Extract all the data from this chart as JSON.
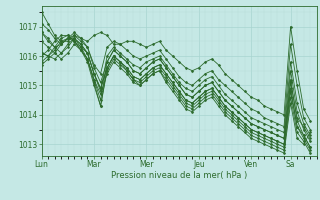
{
  "xlabel": "Pression niveau de la mer( hPa )",
  "bg_color": "#c5e8e5",
  "line_color": "#2d6b2d",
  "grid_major_color": "#a8d4d0",
  "grid_minor_color": "#b8dcd8",
  "ylim": [
    1012.6,
    1017.7
  ],
  "yticks": [
    1013,
    1014,
    1015,
    1016,
    1017
  ],
  "xlim": [
    0,
    252
  ],
  "day_positions": [
    0,
    48,
    96,
    144,
    192,
    228
  ],
  "days": [
    "Lun",
    "Mar",
    "Mer",
    "Jeu",
    "Ven",
    "Sa"
  ],
  "series": [
    [
      0,
      1017.5,
      6,
      1017.1,
      12,
      1016.7,
      18,
      1016.5,
      24,
      1016.5,
      30,
      1016.7,
      36,
      1016.6,
      42,
      1016.5,
      48,
      1016.7,
      54,
      1016.8,
      60,
      1016.7,
      66,
      1016.4,
      72,
      1016.4,
      78,
      1016.5,
      84,
      1016.5,
      90,
      1016.4,
      96,
      1016.3,
      102,
      1016.4,
      108,
      1016.5,
      114,
      1016.2,
      120,
      1016.0,
      126,
      1015.8,
      132,
      1015.6,
      138,
      1015.5,
      144,
      1015.6,
      150,
      1015.8,
      156,
      1015.9,
      162,
      1015.7,
      168,
      1015.4,
      174,
      1015.2,
      180,
      1015.0,
      186,
      1014.8,
      192,
      1014.6,
      198,
      1014.5,
      204,
      1014.3,
      210,
      1014.2,
      216,
      1014.1,
      222,
      1014.0,
      228,
      1017.0,
      234,
      1015.5,
      240,
      1014.2,
      246,
      1013.8
    ],
    [
      0,
      1016.8,
      6,
      1016.5,
      12,
      1016.3,
      18,
      1016.4,
      24,
      1016.6,
      30,
      1016.7,
      36,
      1016.5,
      42,
      1016.3,
      48,
      1015.7,
      54,
      1015.4,
      60,
      1016.3,
      66,
      1016.5,
      72,
      1016.4,
      78,
      1016.2,
      84,
      1016.0,
      90,
      1015.9,
      96,
      1016.0,
      102,
      1016.1,
      108,
      1016.2,
      114,
      1015.9,
      120,
      1015.6,
      126,
      1015.3,
      132,
      1015.1,
      138,
      1015.0,
      144,
      1015.2,
      150,
      1015.4,
      156,
      1015.5,
      162,
      1015.2,
      168,
      1015.0,
      174,
      1014.8,
      180,
      1014.6,
      186,
      1014.4,
      192,
      1014.2,
      198,
      1014.1,
      204,
      1013.9,
      210,
      1013.8,
      216,
      1013.7,
      222,
      1013.6,
      228,
      1016.4,
      234,
      1015.0,
      240,
      1013.9,
      246,
      1013.5
    ],
    [
      0,
      1016.1,
      6,
      1016.0,
      12,
      1016.2,
      18,
      1016.5,
      24,
      1016.6,
      30,
      1016.5,
      36,
      1016.3,
      42,
      1016.1,
      48,
      1015.4,
      54,
      1014.8,
      60,
      1016.0,
      66,
      1016.3,
      72,
      1016.1,
      78,
      1015.9,
      84,
      1015.7,
      90,
      1015.6,
      96,
      1015.8,
      102,
      1015.9,
      108,
      1016.0,
      114,
      1015.7,
      120,
      1015.4,
      126,
      1015.1,
      132,
      1014.9,
      138,
      1014.8,
      144,
      1015.0,
      150,
      1015.2,
      156,
      1015.3,
      162,
      1015.0,
      168,
      1014.7,
      174,
      1014.5,
      180,
      1014.3,
      186,
      1014.1,
      192,
      1013.9,
      198,
      1013.8,
      204,
      1013.7,
      210,
      1013.6,
      216,
      1013.5,
      222,
      1013.4,
      228,
      1015.8,
      234,
      1014.4,
      240,
      1013.7,
      246,
      1013.3
    ],
    [
      0,
      1016.0,
      6,
      1016.2,
      12,
      1016.5,
      18,
      1016.7,
      24,
      1016.7,
      30,
      1016.5,
      36,
      1016.2,
      42,
      1015.9,
      48,
      1015.2,
      54,
      1014.5,
      60,
      1015.8,
      66,
      1016.2,
      72,
      1016.0,
      78,
      1015.8,
      84,
      1015.5,
      90,
      1015.4,
      96,
      1015.6,
      102,
      1015.8,
      108,
      1015.9,
      114,
      1015.6,
      120,
      1015.3,
      126,
      1015.0,
      132,
      1014.7,
      138,
      1014.6,
      144,
      1014.8,
      150,
      1015.0,
      156,
      1015.1,
      162,
      1014.8,
      168,
      1014.5,
      174,
      1014.3,
      180,
      1014.1,
      186,
      1013.9,
      192,
      1013.7,
      198,
      1013.6,
      204,
      1013.5,
      210,
      1013.4,
      216,
      1013.3,
      222,
      1013.2,
      228,
      1015.5,
      234,
      1014.1,
      240,
      1013.5,
      246,
      1013.1
    ],
    [
      0,
      1015.8,
      6,
      1016.0,
      12,
      1016.3,
      18,
      1016.6,
      24,
      1016.7,
      30,
      1016.5,
      36,
      1016.2,
      42,
      1015.8,
      48,
      1015.0,
      54,
      1014.3,
      60,
      1015.6,
      66,
      1016.0,
      72,
      1015.8,
      78,
      1015.6,
      84,
      1015.3,
      90,
      1015.2,
      96,
      1015.4,
      102,
      1015.6,
      108,
      1015.7,
      114,
      1015.4,
      120,
      1015.1,
      126,
      1014.8,
      132,
      1014.5,
      138,
      1014.4,
      144,
      1014.6,
      150,
      1014.8,
      156,
      1014.9,
      162,
      1014.6,
      168,
      1014.3,
      174,
      1014.1,
      180,
      1013.9,
      186,
      1013.7,
      192,
      1013.5,
      198,
      1013.4,
      204,
      1013.3,
      210,
      1013.2,
      216,
      1013.1,
      222,
      1013.0,
      228,
      1015.2,
      234,
      1013.8,
      240,
      1013.3,
      246,
      1012.9
    ],
    [
      0,
      1015.7,
      6,
      1015.9,
      12,
      1016.1,
      18,
      1016.4,
      24,
      1016.6,
      30,
      1016.6,
      36,
      1016.3,
      42,
      1015.9,
      48,
      1015.1,
      54,
      1014.3,
      60,
      1015.5,
      66,
      1015.9,
      72,
      1015.7,
      78,
      1015.5,
      84,
      1015.2,
      90,
      1015.1,
      96,
      1015.3,
      102,
      1015.5,
      108,
      1015.6,
      114,
      1015.3,
      120,
      1015.0,
      126,
      1014.7,
      132,
      1014.4,
      138,
      1014.3,
      144,
      1014.5,
      150,
      1014.7,
      156,
      1014.8,
      162,
      1014.5,
      168,
      1014.2,
      174,
      1014.0,
      180,
      1013.8,
      186,
      1013.6,
      192,
      1013.4,
      198,
      1013.3,
      204,
      1013.2,
      210,
      1013.1,
      216,
      1013.0,
      222,
      1012.9,
      228,
      1014.9,
      234,
      1013.6,
      240,
      1013.2,
      246,
      1012.8
    ],
    [
      0,
      1016.5,
      6,
      1016.3,
      12,
      1016.1,
      18,
      1015.9,
      24,
      1016.1,
      30,
      1016.4,
      36,
      1016.2,
      42,
      1015.9,
      48,
      1015.2,
      54,
      1014.7,
      60,
      1015.4,
      66,
      1015.8,
      72,
      1015.6,
      78,
      1015.4,
      84,
      1015.1,
      90,
      1015.0,
      96,
      1015.2,
      102,
      1015.4,
      108,
      1015.5,
      114,
      1015.2,
      120,
      1014.9,
      126,
      1014.6,
      132,
      1014.3,
      138,
      1014.2,
      144,
      1014.4,
      150,
      1014.6,
      156,
      1014.7,
      162,
      1014.4,
      168,
      1014.1,
      174,
      1013.9,
      180,
      1013.7,
      186,
      1013.5,
      192,
      1013.3,
      198,
      1013.2,
      204,
      1013.1,
      210,
      1013.0,
      216,
      1012.9,
      222,
      1012.8,
      228,
      1014.6,
      234,
      1013.4,
      240,
      1013.1,
      246,
      1012.7
    ],
    [
      0,
      1016.8,
      6,
      1016.6,
      12,
      1016.3,
      18,
      1016.1,
      24,
      1016.3,
      30,
      1016.6,
      36,
      1016.4,
      42,
      1016.1,
      48,
      1015.4,
      54,
      1014.9,
      60,
      1015.6,
      66,
      1016.0,
      72,
      1015.8,
      78,
      1015.6,
      84,
      1015.3,
      90,
      1015.2,
      96,
      1015.4,
      102,
      1015.6,
      108,
      1015.7,
      114,
      1015.4,
      120,
      1015.1,
      126,
      1014.8,
      132,
      1014.5,
      138,
      1014.4,
      144,
      1014.6,
      150,
      1014.8,
      156,
      1014.9,
      162,
      1014.6,
      168,
      1014.3,
      174,
      1014.1,
      180,
      1013.9,
      186,
      1013.7,
      192,
      1013.5,
      198,
      1013.4,
      204,
      1013.3,
      210,
      1013.2,
      216,
      1013.1,
      222,
      1013.0,
      228,
      1014.8,
      234,
      1013.6,
      240,
      1013.3,
      246,
      1012.9
    ],
    [
      0,
      1017.1,
      6,
      1016.9,
      12,
      1016.6,
      18,
      1016.4,
      24,
      1016.6,
      30,
      1016.8,
      36,
      1016.6,
      42,
      1016.3,
      48,
      1015.6,
      54,
      1015.1,
      60,
      1015.8,
      66,
      1016.2,
      72,
      1016.0,
      78,
      1015.8,
      84,
      1015.5,
      90,
      1015.4,
      96,
      1015.6,
      102,
      1015.8,
      108,
      1015.9,
      114,
      1015.6,
      120,
      1015.3,
      126,
      1015.0,
      132,
      1014.7,
      138,
      1014.6,
      144,
      1014.8,
      150,
      1015.0,
      156,
      1015.1,
      162,
      1014.8,
      168,
      1014.5,
      174,
      1014.3,
      180,
      1014.1,
      186,
      1013.9,
      192,
      1013.7,
      198,
      1013.6,
      204,
      1013.5,
      210,
      1013.4,
      216,
      1013.3,
      222,
      1013.2,
      228,
      1015.1,
      234,
      1013.9,
      240,
      1013.6,
      246,
      1013.2
    ],
    [
      0,
      1016.1,
      6,
      1016.0,
      12,
      1015.9,
      18,
      1016.1,
      24,
      1016.4,
      30,
      1016.6,
      36,
      1016.4,
      42,
      1016.1,
      48,
      1015.4,
      54,
      1014.9,
      60,
      1015.6,
      66,
      1016.0,
      72,
      1015.8,
      78,
      1015.5,
      84,
      1015.2,
      90,
      1015.0,
      96,
      1015.2,
      102,
      1015.4,
      108,
      1015.5,
      114,
      1015.1,
      120,
      1014.8,
      126,
      1014.5,
      132,
      1014.2,
      138,
      1014.1,
      144,
      1014.3,
      150,
      1014.5,
      156,
      1014.6,
      162,
      1014.3,
      168,
      1014.0,
      174,
      1013.8,
      180,
      1013.6,
      186,
      1013.4,
      192,
      1013.2,
      198,
      1013.1,
      204,
      1013.0,
      210,
      1012.9,
      216,
      1012.8,
      222,
      1012.7,
      228,
      1014.4,
      234,
      1013.2,
      240,
      1013.0,
      246,
      1013.4
    ]
  ]
}
